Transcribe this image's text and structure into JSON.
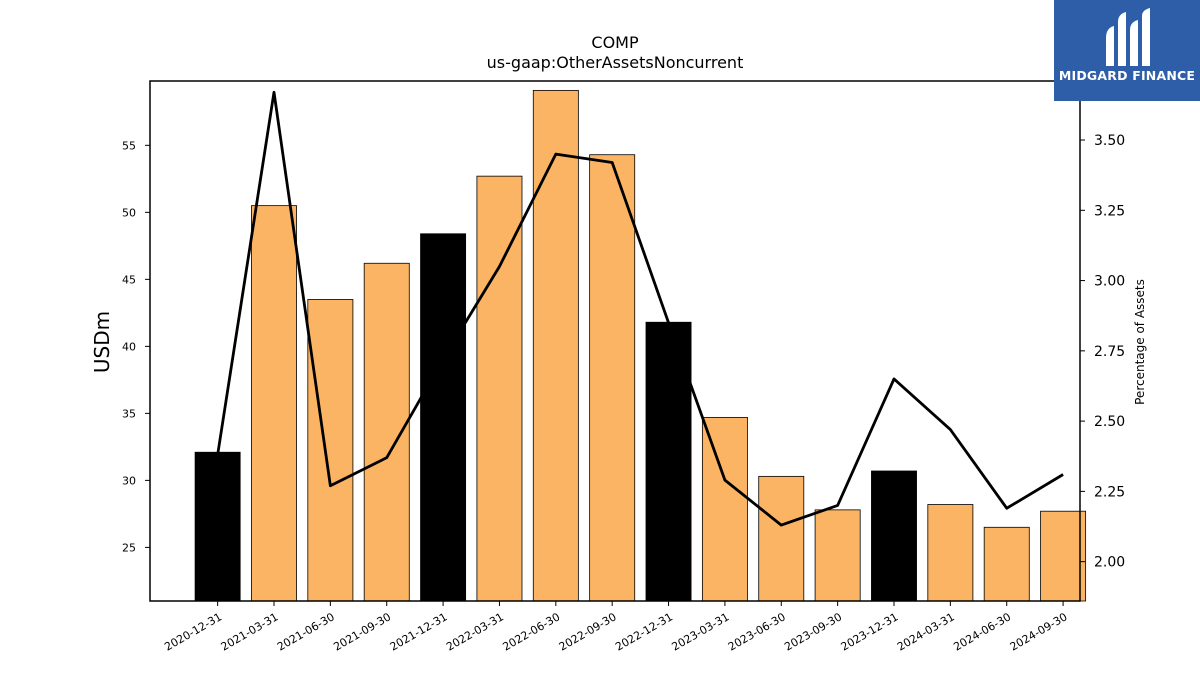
{
  "logo": {
    "text": "MIDGARD FINANCE"
  },
  "chart_data": {
    "type": "bar+line",
    "title": "COMP",
    "subtitle": "us-gaap:OtherAssetsNoncurrent",
    "ylabel_left": "USDm",
    "ylabel_right": "Percentage of Assets",
    "categories": [
      "2020-12-31",
      "2021-03-31",
      "2021-06-30",
      "2021-09-30",
      "2021-12-31",
      "2022-03-31",
      "2022-06-30",
      "2022-09-30",
      "2022-12-31",
      "2023-03-31",
      "2023-06-30",
      "2023-09-30",
      "2023-12-31",
      "2024-03-31",
      "2024-06-30",
      "2024-09-30"
    ],
    "bar_values": [
      32.1,
      50.5,
      43.5,
      46.2,
      48.4,
      52.7,
      59.1,
      54.3,
      41.8,
      34.7,
      30.3,
      27.8,
      30.7,
      28.2,
      26.5,
      27.7
    ],
    "bar_colors": [
      "#000000",
      "#fbb463",
      "#fbb463",
      "#fbb463",
      "#000000",
      "#fbb463",
      "#fbb463",
      "#fbb463",
      "#000000",
      "#fbb463",
      "#fbb463",
      "#fbb463",
      "#000000",
      "#fbb463",
      "#fbb463",
      "#fbb463"
    ],
    "line_values": [
      2.38,
      3.67,
      2.27,
      2.37,
      2.72,
      3.05,
      3.45,
      3.42,
      2.85,
      2.29,
      2.13,
      2.2,
      2.65,
      2.47,
      2.19,
      2.31
    ],
    "ylim_left": [
      21,
      59.8
    ],
    "ylim_right": [
      1.86,
      3.71
    ],
    "yticks_left": [
      25,
      30,
      35,
      40,
      45,
      50,
      55
    ],
    "yticks_right": [
      "2.00",
      "2.25",
      "2.50",
      "2.75",
      "3.00",
      "3.25",
      "3.50"
    ],
    "colors": {
      "bar_highlight": "#000000",
      "bar_normal": "#fbb463",
      "line": "#000000"
    }
  }
}
